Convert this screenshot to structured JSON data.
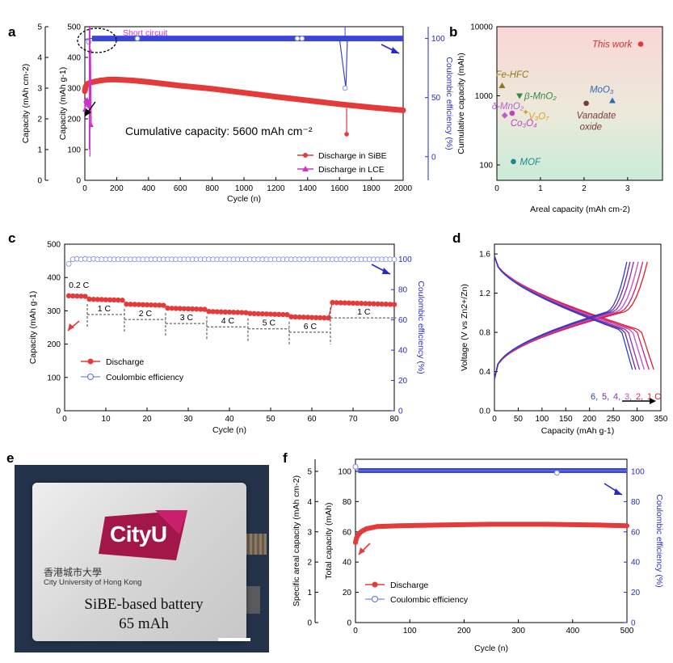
{
  "figure": {
    "panel_labels": [
      "a",
      "b",
      "c",
      "d",
      "e",
      "f"
    ]
  },
  "colors": {
    "red": "#e43a3a",
    "blue": "#3a46d8",
    "magenta": "#cc33cc",
    "black": "#000000"
  },
  "chart_data": [
    {
      "panel": "a",
      "type": "line",
      "xlabel": "Cycle (n)",
      "ylabel_outer": "Capacity (mAh cm-2)",
      "ylabel_inner": "Capacity (mAh g-1)",
      "ylabel_right": "Coulombic efficiency (%)",
      "xlim": [
        0,
        2000
      ],
      "ylim_inner": [
        0,
        500
      ],
      "ylim_outer": [
        0,
        5
      ],
      "ylim_right": [
        -20,
        110
      ],
      "xticks": [
        "0",
        "200",
        "400",
        "600",
        "800",
        "1000",
        "1200",
        "1400",
        "1600",
        "1800",
        "2000"
      ],
      "yticks_inner": [
        "0",
        "100",
        "200",
        "300",
        "400",
        "500"
      ],
      "yticks_outer": [
        "0",
        "1",
        "2",
        "3",
        "4",
        "5"
      ],
      "yticks_right": [
        "0",
        "50",
        "100"
      ],
      "annotation_short": "Short circuit",
      "annotation_cum": "Cumulative capacity: 5600 mAh cm⁻²",
      "legend": [
        "Discharge in SiBE",
        "Discharge in LCE"
      ],
      "series": [
        {
          "name": "Discharge in SiBE",
          "x": [
            0,
            5,
            10,
            20,
            50,
            100,
            150,
            200,
            300,
            400,
            600,
            800,
            1000,
            1200,
            1400,
            1600,
            1800,
            2000
          ],
          "y": [
            290,
            305,
            310,
            315,
            320,
            325,
            328,
            328,
            325,
            320,
            308,
            298,
            285,
            272,
            260,
            248,
            237,
            228
          ]
        },
        {
          "name": "CE SiBE",
          "x": [
            0,
            10,
            40,
            200,
            400,
            800,
            1200,
            1600,
            1640,
            1650,
            1660,
            2000
          ],
          "y": [
            98,
            99.5,
            100,
            100,
            100,
            100,
            100,
            100,
            58,
            100,
            100,
            100
          ]
        },
        {
          "name": "Discharge in LCE",
          "x": [
            0,
            5,
            10,
            15,
            20,
            25,
            30,
            35,
            40
          ],
          "y": [
            230,
            260,
            250,
            262,
            245,
            255,
            240,
            420,
            180
          ]
        }
      ]
    },
    {
      "panel": "b",
      "type": "scatter",
      "xlabel": "Areal capacity (mAh cm-2)",
      "ylabel": "Cumulative capacity (mAh)",
      "xlim": [
        0,
        3.8
      ],
      "ylim_log": [
        60,
        10000
      ],
      "xticks": [
        "0",
        "1",
        "2",
        "3"
      ],
      "yticks": [
        "100",
        "1000",
        "10000"
      ],
      "points": [
        {
          "label": "This work",
          "x": 3.3,
          "y": 5600
        },
        {
          "label": "Fe-HFC",
          "x": 0.12,
          "y": 1400
        },
        {
          "label": "β-MnO₂",
          "x": 0.52,
          "y": 1000
        },
        {
          "label": "δ-MnO₂",
          "x": 0.18,
          "y": 520
        },
        {
          "label": "Co₃O₄",
          "x": 0.35,
          "y": 560
        },
        {
          "label": "V₃O₇",
          "x": 0.65,
          "y": 580
        },
        {
          "label": "Vanadate oxide",
          "x": 2.05,
          "y": 780
        },
        {
          "label": "MoO₃",
          "x": 2.65,
          "y": 850
        },
        {
          "label": "MOF",
          "x": 0.38,
          "y": 112
        }
      ]
    },
    {
      "panel": "c",
      "type": "line",
      "xlabel": "Cycle (n)",
      "ylabel": "Capacity (mAh g-1)",
      "ylabel_right": "Coulombic efficiency (%)",
      "xlim": [
        0,
        80
      ],
      "ylim": [
        0,
        500
      ],
      "ylim_right": [
        0,
        110
      ],
      "xticks": [
        "0",
        "10",
        "20",
        "30",
        "40",
        "50",
        "60",
        "70",
        "80"
      ],
      "yticks": [
        "0",
        "100",
        "200",
        "300",
        "400",
        "500"
      ],
      "yticks_right": [
        "0",
        "20",
        "40",
        "60",
        "80",
        "100"
      ],
      "rate_labels": [
        "0.2 C",
        "1 C",
        "2 C",
        "3 C",
        "4 C",
        "5 C",
        "6 C",
        "1 C"
      ],
      "legend": [
        "Discharge",
        "Coulombic efficiency"
      ],
      "discharge": [
        {
          "x0": 1,
          "x1": 5,
          "y": 345
        },
        {
          "x0": 6,
          "x1": 14,
          "y": 335
        },
        {
          "x0": 15,
          "x1": 24,
          "y": 320
        },
        {
          "x0": 25,
          "x1": 34,
          "y": 308
        },
        {
          "x0": 35,
          "x1": 44,
          "y": 298
        },
        {
          "x0": 45,
          "x1": 54,
          "y": 292
        },
        {
          "x0": 55,
          "x1": 64,
          "y": 282
        },
        {
          "x0": 65,
          "x1": 80,
          "y": 325
        }
      ],
      "ce": {
        "first": 97,
        "rest": 100
      }
    },
    {
      "panel": "d",
      "type": "line",
      "xlabel": "Capacity (mAh g-1)",
      "ylabel": "Voltage (V vs Zn2+/Zn)",
      "xlim": [
        0,
        350
      ],
      "ylim": [
        0,
        1.7
      ],
      "xticks": [
        "0",
        "50",
        "100",
        "150",
        "200",
        "250",
        "300",
        "350"
      ],
      "yticks": [
        "0.0",
        "0.4",
        "0.8",
        "1.2",
        "1.6"
      ],
      "legend_rates": [
        "6",
        "5",
        "4",
        "3",
        "2",
        "1 C"
      ],
      "series": [
        {
          "name": "1 C",
          "capacity": 335,
          "color": "#e02020"
        },
        {
          "name": "2 C",
          "capacity": 325,
          "color": "#d0207a"
        },
        {
          "name": "3 C",
          "capacity": 315,
          "color": "#c050c0"
        },
        {
          "name": "4 C",
          "capacity": 305,
          "color": "#9030b0"
        },
        {
          "name": "5 C",
          "capacity": 297,
          "color": "#6a2a9a"
        },
        {
          "name": "6",
          "capacity": 290,
          "color": "#2b3fc8"
        }
      ]
    },
    {
      "panel": "f",
      "type": "line",
      "xlabel": "Cycle (n)",
      "ylabel_outer": "Specific areal capacity (mAh cm-2)",
      "ylabel_inner": "Total capacity (mAh)",
      "ylabel_right": "Coulombic efficiency (%)",
      "xlim": [
        0,
        500
      ],
      "ylim_inner": [
        0,
        108
      ],
      "ylim_right": [
        0,
        108
      ],
      "xticks": [
        "0",
        "100",
        "200",
        "300",
        "400",
        "500"
      ],
      "yticks_inner": [
        "0",
        "20",
        "40",
        "60",
        "80",
        "100"
      ],
      "yticks_outer": [
        "0",
        "1",
        "2",
        "3",
        "4",
        "5"
      ],
      "yticks_right": [
        "0",
        "20",
        "40",
        "60",
        "80",
        "100"
      ],
      "legend": [
        "Discharge",
        "Coulombic efficiency"
      ],
      "series": [
        {
          "name": "Discharge",
          "x": [
            0,
            2,
            5,
            10,
            20,
            40,
            80,
            150,
            250,
            350,
            450,
            500
          ],
          "y": [
            53,
            56,
            58,
            60,
            62,
            63.5,
            64,
            64.5,
            65,
            65,
            64.5,
            64
          ]
        },
        {
          "name": "Coulombic efficiency",
          "x": [
            0,
            5,
            370,
            371,
            372,
            500
          ],
          "y": [
            103,
            100.5,
            100.5,
            99,
            100.5,
            100.5
          ]
        }
      ]
    }
  ],
  "photo": {
    "logo_word": "CityU",
    "logo_cn": "香港城市大學",
    "logo_en": "City University of Hong Kong",
    "caption_line1": "SiBE-based battery",
    "caption_line2": "65 mAh"
  }
}
